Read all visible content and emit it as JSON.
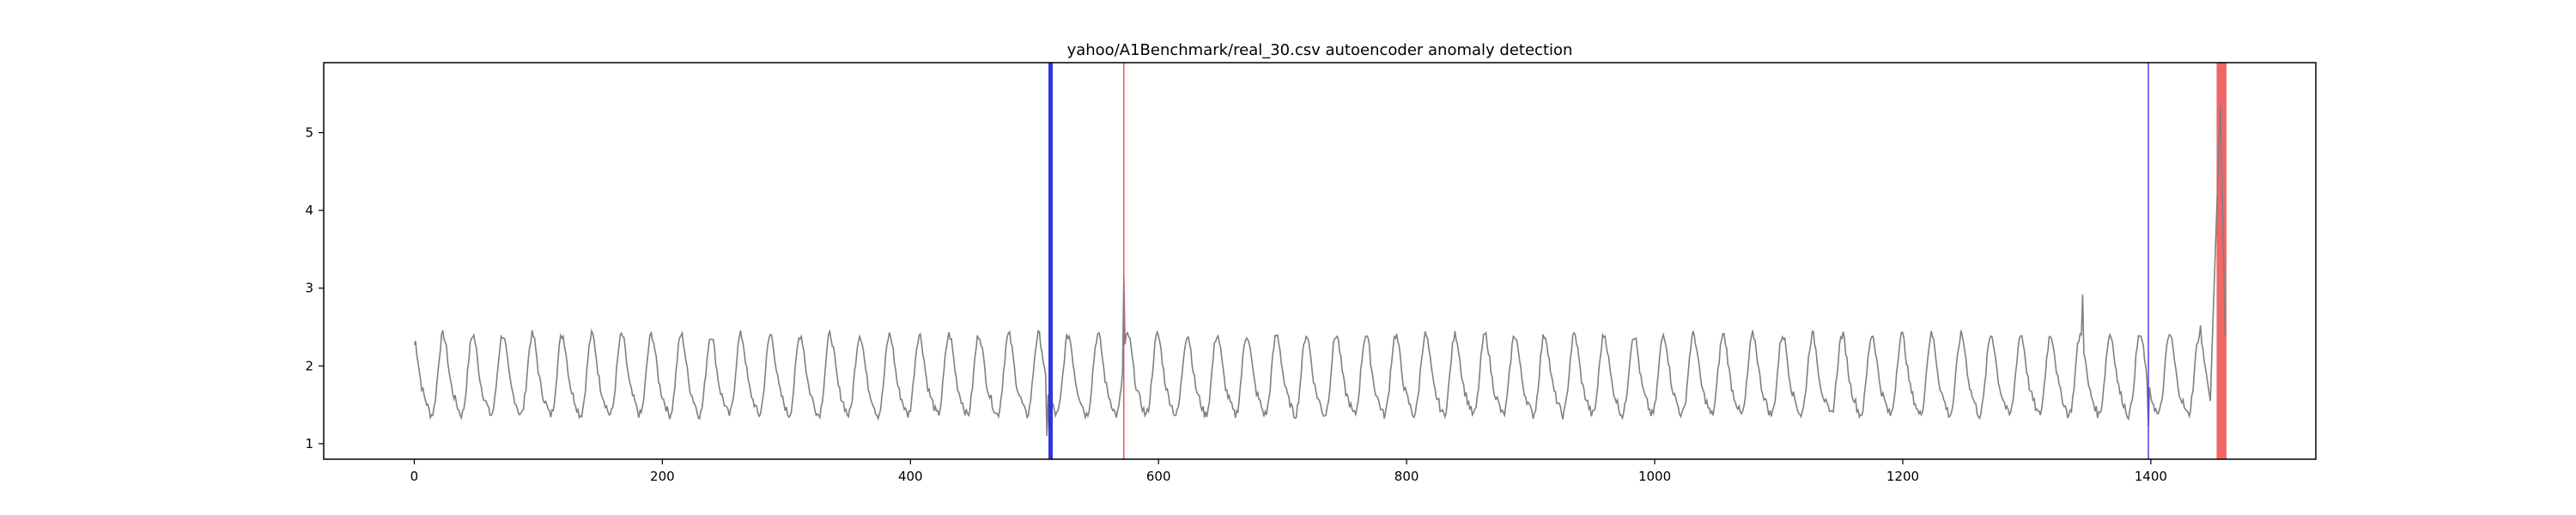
{
  "chart_data": {
    "type": "line",
    "title": "yahoo/A1Benchmark/real_30.csv autoencoder anomaly detection",
    "xlabel": "",
    "ylabel": "",
    "xlim": [
      -73,
      1533
    ],
    "ylim": [
      0.8,
      5.9
    ],
    "x_ticks": [
      0,
      200,
      400,
      600,
      800,
      1000,
      1200,
      1400
    ],
    "y_ticks": [
      1,
      2,
      3,
      4,
      5
    ],
    "x_tick_labels": [
      "0",
      "200",
      "400",
      "600",
      "800",
      "1000",
      "1200",
      "1400"
    ],
    "y_tick_labels": [
      "1",
      "2",
      "3",
      "4",
      "5"
    ],
    "grid": false,
    "series": [
      {
        "color": "#808080",
        "x_start": 0,
        "x_end": 1460,
        "base_level": 1.82,
        "amplitude": 0.48,
        "period": 24,
        "values_note_free": true,
        "keypoints": [
          {
            "x": 0,
            "y": 2.27
          },
          {
            "x": 510,
            "y": 1.1
          },
          {
            "x": 512,
            "y": 1.02
          },
          {
            "x": 572,
            "y": 3.15
          },
          {
            "x": 1345,
            "y": 2.92
          },
          {
            "x": 1398,
            "y": 1.22
          },
          {
            "x": 1440,
            "y": 2.52
          },
          {
            "x": 1448,
            "y": 1.55
          },
          {
            "x": 1450,
            "y": 2.55
          },
          {
            "x": 1456,
            "y": 5.35
          },
          {
            "x": 1460,
            "y": 2.4
          }
        ]
      }
    ],
    "vlines": [
      {
        "x": 513,
        "color": "#3333dd",
        "width": 5
      },
      {
        "x": 572,
        "color": "#e35555",
        "width": 1.5
      },
      {
        "x": 1398,
        "color": "#4444dd",
        "width": 1.5
      }
    ],
    "vspans": [
      {
        "x0": 1453,
        "x1": 1461,
        "color": "#ef4b4b"
      }
    ]
  }
}
